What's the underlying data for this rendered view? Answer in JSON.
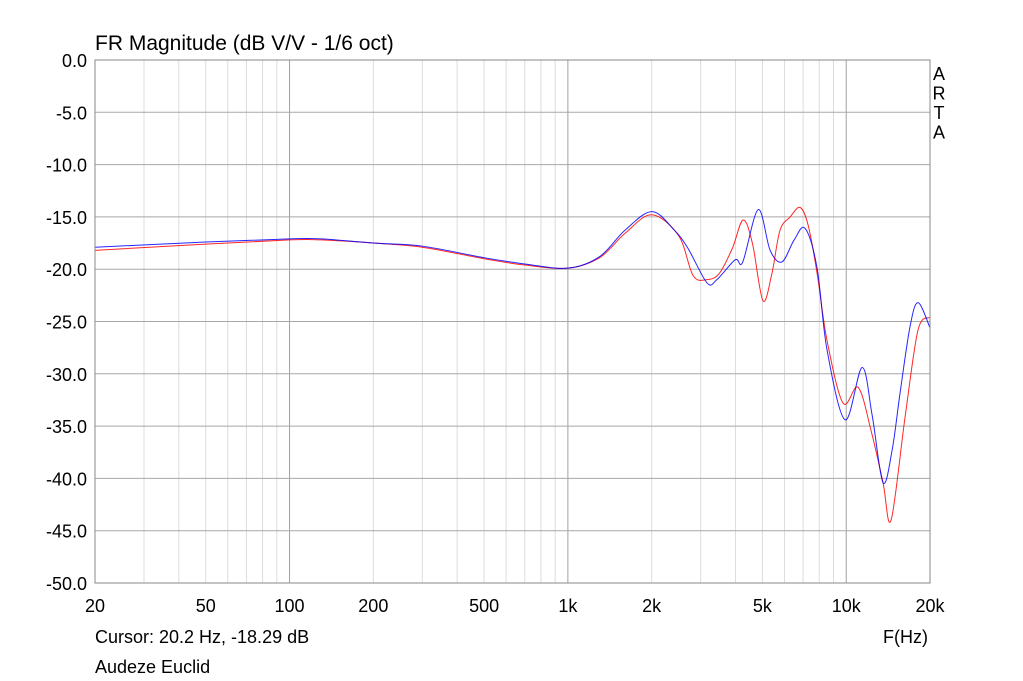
{
  "chart_data": {
    "type": "line",
    "title": "FR Magnitude (dB V/V - 1/6 oct)",
    "xlabel": "F(Hz)",
    "ylabel": "",
    "xscale": "log",
    "xlim": [
      20,
      20000
    ],
    "ylim": [
      -50,
      0
    ],
    "grid": true,
    "x_tick_values": [
      20,
      50,
      100,
      200,
      500,
      1000,
      2000,
      5000,
      10000,
      20000
    ],
    "x_tick_labels": [
      "20",
      "50",
      "100",
      "200",
      "500",
      "1k",
      "2k",
      "5k",
      "10k",
      "20k"
    ],
    "y_tick_values": [
      0,
      -5,
      -10,
      -15,
      -20,
      -25,
      -30,
      -35,
      -40,
      -45,
      -50
    ],
    "y_tick_labels": [
      "0.0",
      "-5.0",
      "-10.0",
      "-15.0",
      "-20.0",
      "-25.0",
      "-30.0",
      "-35.0",
      "-40.0",
      "-45.0",
      "-50.0"
    ],
    "series": [
      {
        "color": "#ff0000",
        "points": [
          [
            20,
            -18.2
          ],
          [
            50,
            -17.6
          ],
          [
            100,
            -17.2
          ],
          [
            130,
            -17.2
          ],
          [
            200,
            -17.5
          ],
          [
            300,
            -17.9
          ],
          [
            500,
            -19.0
          ],
          [
            700,
            -19.6
          ],
          [
            1000,
            -19.9
          ],
          [
            1300,
            -18.9
          ],
          [
            1600,
            -16.6
          ],
          [
            2000,
            -14.8
          ],
          [
            2500,
            -16.8
          ],
          [
            2818,
            -20.6
          ],
          [
            3160,
            -21.0
          ],
          [
            3500,
            -20.4
          ],
          [
            3900,
            -18.0
          ],
          [
            4260,
            -15.3
          ],
          [
            4600,
            -17.5
          ],
          [
            5020,
            -23.0
          ],
          [
            5400,
            -20.5
          ],
          [
            5780,
            -16.3
          ],
          [
            6290,
            -15.0
          ],
          [
            6830,
            -14.1
          ],
          [
            7300,
            -15.8
          ],
          [
            7860,
            -20.4
          ],
          [
            8530,
            -26.8
          ],
          [
            9740,
            -32.8
          ],
          [
            11040,
            -31.3
          ],
          [
            12300,
            -35.5
          ],
          [
            13560,
            -40.4
          ],
          [
            14490,
            -44.0
          ],
          [
            16280,
            -34.1
          ],
          [
            18120,
            -25.8
          ],
          [
            20000,
            -24.6
          ]
        ]
      },
      {
        "color": "#0000ff",
        "points": [
          [
            20,
            -17.9
          ],
          [
            50,
            -17.4
          ],
          [
            100,
            -17.1
          ],
          [
            130,
            -17.1
          ],
          [
            200,
            -17.5
          ],
          [
            300,
            -17.8
          ],
          [
            500,
            -18.9
          ],
          [
            700,
            -19.5
          ],
          [
            1000,
            -19.9
          ],
          [
            1300,
            -18.8
          ],
          [
            1600,
            -16.3
          ],
          [
            2000,
            -14.5
          ],
          [
            2400,
            -16.2
          ],
          [
            2700,
            -18.0
          ],
          [
            3160,
            -21.3
          ],
          [
            3430,
            -21.0
          ],
          [
            3990,
            -19.1
          ],
          [
            4250,
            -19.3
          ],
          [
            4830,
            -14.3
          ],
          [
            5330,
            -18.2
          ],
          [
            5880,
            -19.3
          ],
          [
            6500,
            -17.2
          ],
          [
            7120,
            -16.1
          ],
          [
            7860,
            -19.9
          ],
          [
            8530,
            -27.7
          ],
          [
            9910,
            -34.4
          ],
          [
            11400,
            -29.4
          ],
          [
            12400,
            -34.0
          ],
          [
            13560,
            -40.4
          ],
          [
            14620,
            -37.3
          ],
          [
            15620,
            -31.8
          ],
          [
            16950,
            -25.5
          ],
          [
            18120,
            -23.2
          ],
          [
            20000,
            -25.6
          ]
        ]
      }
    ]
  },
  "watermark": "ARTA",
  "cursor_readout": "Cursor: 20.2 Hz, -18.29 dB",
  "device_name": "Audeze Euclid"
}
